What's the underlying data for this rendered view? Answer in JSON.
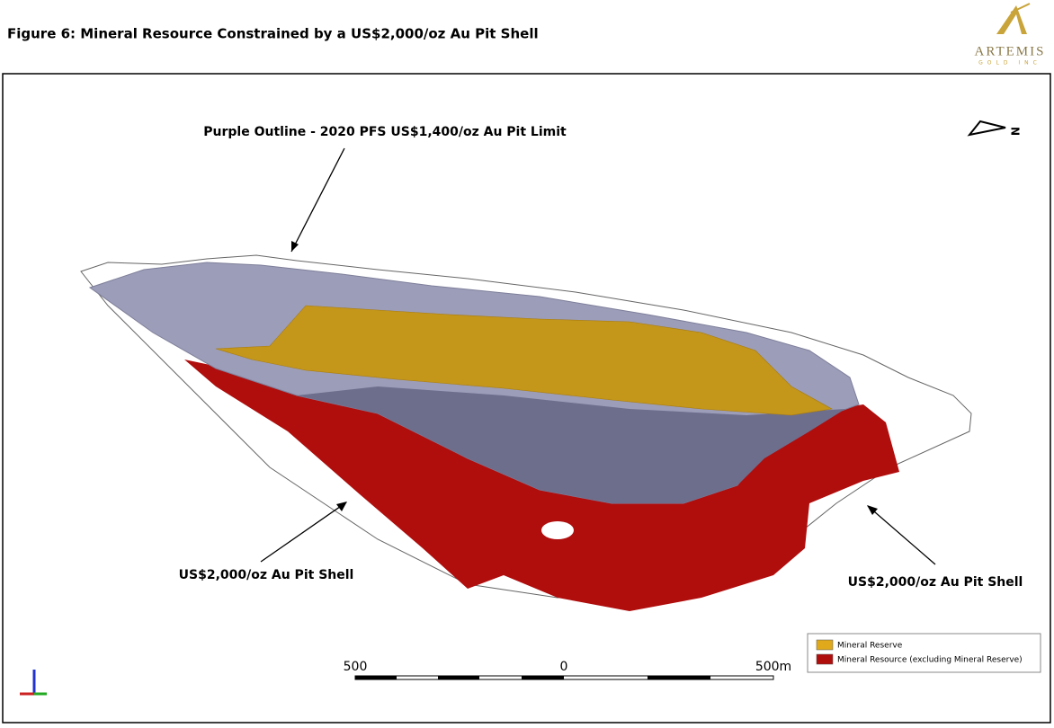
{
  "header": {
    "title": "Figure 6: Mineral Resource Constrained by a US$2,000/oz Au Pit Shell"
  },
  "logo": {
    "name": "ARTEMIS",
    "tagline": "GOLD INC"
  },
  "annotations": [
    {
      "text": "Purple Outline - 2020 PFS US$1,400/oz Au Pit Limit"
    },
    {
      "text": "US$2,000/oz Au Pit Shell"
    },
    {
      "text": "US$2,000/oz Au Pit Shell"
    }
  ],
  "north_arrow": {
    "label": "N"
  },
  "legend": {
    "items": [
      {
        "label": "Mineral Reserve",
        "color": "#e0a91c"
      },
      {
        "label": "Mineral Resource (excluding Mineral Reserve)",
        "color": "#b00d0d"
      }
    ]
  },
  "scale_bar": {
    "labels": [
      "500",
      "0",
      "500m"
    ]
  }
}
